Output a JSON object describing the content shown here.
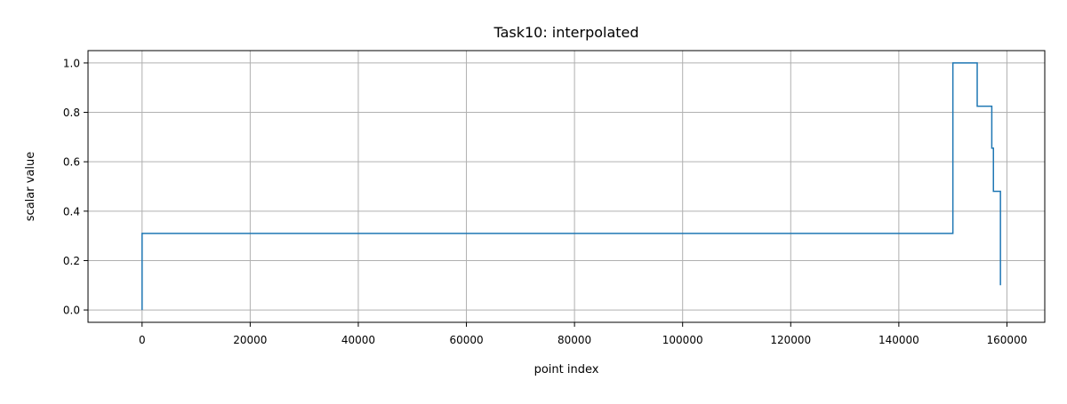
{
  "chart_data": {
    "type": "line",
    "title": "Task10: interpolated",
    "xlabel": "point index",
    "ylabel": "scalar value",
    "xlim": [
      -10000,
      167000
    ],
    "ylim": [
      -0.05,
      1.05
    ],
    "x_ticks": [
      0,
      20000,
      40000,
      60000,
      80000,
      100000,
      120000,
      140000,
      160000
    ],
    "y_ticks": [
      0.0,
      0.2,
      0.4,
      0.6,
      0.8,
      1.0
    ],
    "x_tick_labels": [
      "0",
      "20000",
      "40000",
      "60000",
      "80000",
      "100000",
      "120000",
      "140000",
      "160000"
    ],
    "y_tick_labels": [
      "0.0",
      "0.2",
      "0.4",
      "0.6",
      "0.8",
      "1.0"
    ],
    "grid": true,
    "line_color": "#1f77b4",
    "series": [
      {
        "x": [
          0,
          0,
          150000,
          150000,
          154500,
          154500,
          157200,
          157200,
          157500,
          157500,
          158800,
          158800
        ],
        "y": [
          0.0,
          0.31,
          0.31,
          1.0,
          1.0,
          0.825,
          0.825,
          0.655,
          0.655,
          0.48,
          0.48,
          0.1
        ]
      }
    ]
  }
}
